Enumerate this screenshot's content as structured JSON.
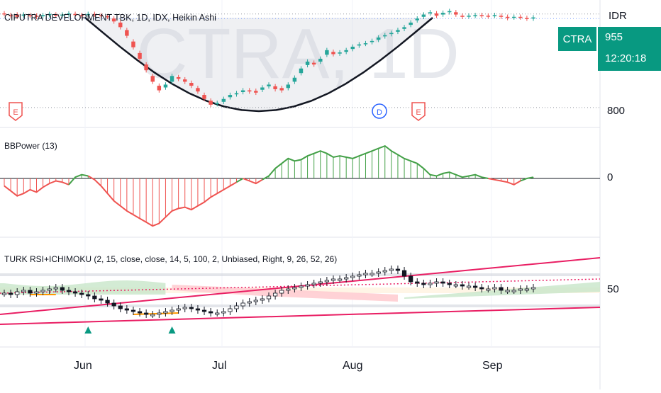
{
  "pane1": {
    "title": "CIPUTRA DEVELOPMENT TBK, 1D, IDX, Heikin Ashi",
    "watermark": "CTRA, 1D",
    "currency": "IDR",
    "ticker": "CTRA",
    "price_label": "955",
    "countdown": "12:20:18",
    "axis_label_low": "800",
    "markers": [
      "E",
      "D",
      "E"
    ]
  },
  "pane2": {
    "title": "BBPower (13)",
    "zero_label": "0"
  },
  "pane3": {
    "title": "TURK RSI+ICHIMOKU (2, 15, close, close, 14, 5, 100, 2, Unbiased, Right, 9, 26, 52, 26)",
    "mid_label": "50"
  },
  "x_axis": {
    "labels": [
      "Jun",
      "Jul",
      "Aug",
      "Sep"
    ]
  },
  "colors": {
    "up": "#26a69a",
    "down": "#ef5350",
    "ink": "#131722",
    "badge": "#089981",
    "channel": "#e91e63",
    "orange": "#ff9800",
    "cloud_green": "#c8e6c9",
    "cloud_red": "#ffcdd2"
  },
  "chart_data": [
    {
      "type": "candlestick",
      "title": "CIPUTRA DEVELOPMENT TBK, 1D, IDX, Heikin Ashi",
      "ylabel": "IDR",
      "ylim": [
        790,
        975
      ],
      "close": [
        963,
        960,
        958,
        962,
        960,
        958,
        961,
        963,
        960,
        962,
        964,
        961,
        960,
        963,
        962,
        960,
        958,
        950,
        940,
        925,
        905,
        885,
        865,
        845,
        830,
        840,
        855,
        850,
        845,
        838,
        828,
        815,
        805,
        808,
        815,
        822,
        825,
        830,
        828,
        826,
        835,
        840,
        832,
        830,
        840,
        852,
        868,
        880,
        875,
        885,
        900,
        893,
        896,
        900,
        906,
        910,
        912,
        916,
        922,
        926,
        930,
        935,
        940,
        948,
        955,
        962,
        966,
        960,
        965,
        968,
        962,
        958,
        960,
        961,
        960,
        959,
        961,
        958,
        956,
        958,
        957,
        955,
        957
      ],
      "open": [
        964,
        961,
        962,
        960,
        961,
        960,
        959,
        961,
        962,
        960,
        962,
        963,
        961,
        961,
        963,
        961,
        959,
        955,
        948,
        935,
        915,
        895,
        875,
        855,
        838,
        835,
        845,
        853,
        849,
        843,
        834,
        822,
        812,
        806,
        810,
        818,
        823,
        827,
        830,
        829,
        831,
        837,
        837,
        834,
        834,
        845,
        860,
        874,
        878,
        880,
        892,
        897,
        894,
        897,
        902,
        908,
        911,
        914,
        918,
        924,
        928,
        932,
        937,
        944,
        952,
        958,
        964,
        964,
        962,
        966,
        966,
        960,
        959,
        960,
        961,
        960,
        960,
        960,
        958,
        957,
        958,
        956,
        955
      ],
      "x_labels": [
        "Jun",
        "Jul",
        "Aug",
        "Sep"
      ]
    },
    {
      "type": "area",
      "title": "BBPower (13)",
      "values": [
        -6,
        -10,
        -14,
        -12,
        -9,
        -11,
        -7,
        -4,
        -2,
        -3,
        -5,
        1,
        3,
        2,
        -1,
        -6,
        -12,
        -18,
        -22,
        -26,
        -29,
        -32,
        -35,
        -38,
        -36,
        -31,
        -26,
        -24,
        -23,
        -25,
        -22,
        -19,
        -15,
        -12,
        -9,
        -6,
        -3,
        0,
        -2,
        -4,
        -1,
        2,
        8,
        12,
        16,
        14,
        15,
        18,
        20,
        22,
        20,
        17,
        18,
        17,
        16,
        18,
        20,
        22,
        24,
        26,
        22,
        19,
        16,
        14,
        12,
        8,
        3,
        2,
        4,
        5,
        3,
        1,
        2,
        3,
        1,
        0,
        -1,
        -2,
        -3,
        -5,
        -2,
        0,
        1
      ],
      "ylim": [
        -45,
        40
      ]
    },
    {
      "type": "line",
      "title": "TURK RSI+ICHIMOKU (2, 15, close, close, 14, 5, 100, 2, Unbiased, Right, 9, 26, 52, 26)",
      "rsi": [
        48,
        47,
        49,
        50,
        48,
        49,
        50,
        51,
        52,
        50,
        49,
        48,
        47,
        46,
        44,
        43,
        41,
        39,
        37,
        36,
        35,
        34,
        33,
        33,
        34,
        35,
        36,
        37,
        38,
        37,
        36,
        35,
        34,
        34,
        35,
        37,
        39,
        41,
        42,
        43,
        44,
        46,
        48,
        50,
        51,
        52,
        53,
        54,
        55,
        56,
        57,
        58,
        58,
        59,
        60,
        61,
        62,
        62,
        63,
        64,
        65,
        64,
        60,
        56,
        55,
        54,
        55,
        56,
        55,
        54,
        54,
        53,
        53,
        52,
        51,
        51,
        52,
        50,
        50,
        50,
        51,
        51,
        52
      ],
      "mid_level": 50,
      "ylim": [
        20,
        80
      ]
    }
  ]
}
